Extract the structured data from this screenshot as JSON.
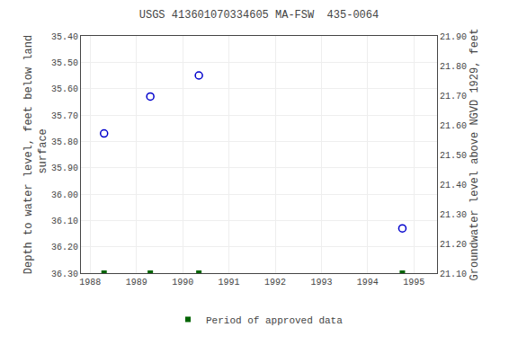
{
  "chart_data": {
    "type": "scatter",
    "title": "USGS 413601070334605 MA-FSW  435-0064",
    "y_label": "Depth to water level, feet below land\n surface",
    "y2_label": "Groundwater level above NGVD 1929, feet",
    "xlim": [
      1987.8,
      1995.5
    ],
    "xticks": [
      1988,
      1989,
      1990,
      1991,
      1992,
      1993,
      1994,
      1995
    ],
    "ylim": [
      36.3,
      35.4
    ],
    "yticks": [
      {
        "value": 35.4,
        "label": "35.40"
      },
      {
        "value": 35.5,
        "label": "35.50"
      },
      {
        "value": 35.6,
        "label": "35.60"
      },
      {
        "value": 35.7,
        "label": "35.70"
      },
      {
        "value": 35.8,
        "label": "35.80"
      },
      {
        "value": 35.9,
        "label": "35.90"
      },
      {
        "value": 36.0,
        "label": "36.00"
      },
      {
        "value": 36.1,
        "label": "36.10"
      },
      {
        "value": 36.2,
        "label": "36.20"
      },
      {
        "value": 36.3,
        "label": "36.30"
      }
    ],
    "y2lim": [
      21.1,
      21.9
    ],
    "y2ticks": [
      {
        "value": 21.1,
        "label": "21.10"
      },
      {
        "value": 21.2,
        "label": "21.20"
      },
      {
        "value": 21.3,
        "label": "21.30"
      },
      {
        "value": 21.4,
        "label": "21.40"
      },
      {
        "value": 21.5,
        "label": "21.50"
      },
      {
        "value": 21.6,
        "label": "21.60"
      },
      {
        "value": 21.7,
        "label": "21.70"
      },
      {
        "value": 21.8,
        "label": "21.80"
      },
      {
        "value": 21.9,
        "label": "21.90"
      }
    ],
    "grid": true,
    "legend": "bottom",
    "series": [
      {
        "x": [
          1988.3,
          1989.3,
          1990.35,
          1994.75
        ],
        "values": [
          35.77,
          35.63,
          35.55,
          36.13
        ],
        "color": "#0000cc",
        "marker": "circle-open"
      },
      {
        "name": "Period of approved data",
        "x": [
          1988.3,
          1989.3,
          1990.35,
          1994.75
        ],
        "values": [
          36.3,
          36.3,
          36.3,
          36.3
        ],
        "color": "#006400",
        "marker": "square"
      }
    ]
  }
}
